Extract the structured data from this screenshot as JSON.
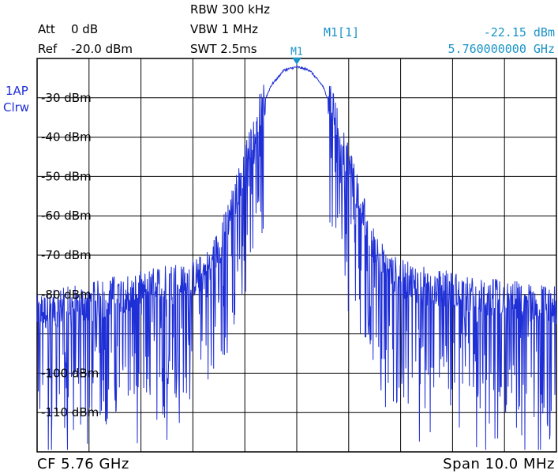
{
  "header": {
    "att_label": "Att",
    "att_value": "0 dB",
    "ref_label": "Ref",
    "ref_value": "-20.0 dBm",
    "rbw": "RBW 300 kHz",
    "vbw": "VBW 1 MHz",
    "swt": "SWT 2.5ms",
    "marker_name": "M1[1]",
    "marker_level": "-22.15 dBm",
    "marker_freq": "5.760000000 GHz"
  },
  "trace": {
    "label_line1": "1AP",
    "label_line2": "Clrw"
  },
  "footer": {
    "center_freq": "CF 5.76 GHz",
    "span": "Span 10.0 MHz"
  },
  "colors": {
    "trace": "#1f2fd6",
    "marker": "#1a93c7",
    "grid": "#000000",
    "background": "#ffffff"
  },
  "chart_data": {
    "type": "line",
    "title": "",
    "xlabel": "",
    "ylabel": "",
    "x_unit": "MHz",
    "y_unit": "dBm",
    "xlim": [
      -5,
      5
    ],
    "ylim": [
      -120,
      -20
    ],
    "x_gridlines": 10,
    "y_gridlines": 10,
    "grid": true,
    "y_tick_labels": [
      {
        "value": -30,
        "label": "-30 dBm"
      },
      {
        "value": -40,
        "label": "-40 dBm"
      },
      {
        "value": -50,
        "label": "-50 dBm"
      },
      {
        "value": -60,
        "label": "-60 dBm"
      },
      {
        "value": -70,
        "label": "-70 dBm"
      },
      {
        "value": -80,
        "label": "-80 dBm"
      },
      {
        "value": -100,
        "label": "-100 dBm"
      },
      {
        "value": -110,
        "label": "-110 dBm"
      }
    ],
    "marker": {
      "name": "M1",
      "x": 0,
      "y": -22.15
    },
    "series": [
      {
        "values_x": [
          -5.0,
          -4.5,
          -4.0,
          -3.5,
          -3.0,
          -2.5,
          -2.0,
          -1.75,
          -1.5,
          -1.25,
          -1.0,
          -0.75,
          -0.5,
          -0.25,
          0.0,
          0.25,
          0.5,
          0.75,
          1.0,
          1.25,
          1.5,
          1.75,
          2.0,
          2.5,
          3.0,
          3.5,
          4.0,
          4.5,
          5.0
        ],
        "values_y": [
          -85,
          -83,
          -82,
          -80,
          -79,
          -77,
          -76,
          -74,
          -68,
          -58,
          -47,
          -35,
          -27,
          -23,
          -22.15,
          -23,
          -27,
          -35,
          -47,
          -58,
          -68,
          -74,
          -76,
          -78,
          -79,
          -81,
          -81,
          -82,
          -83
        ]
      }
    ]
  }
}
